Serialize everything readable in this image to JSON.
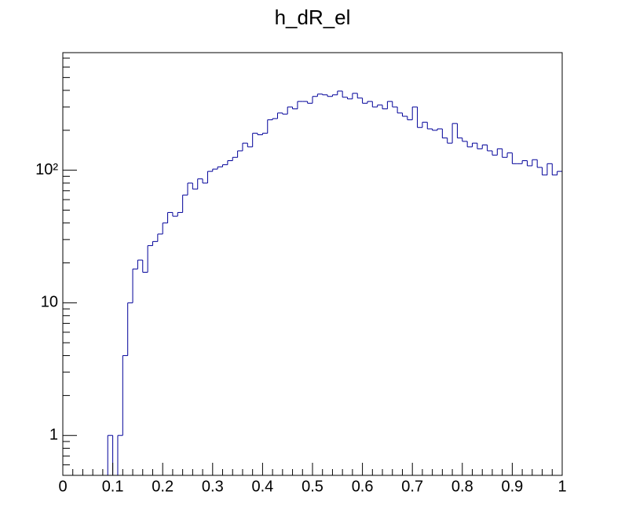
{
  "chart_data": {
    "type": "histogram",
    "title": "h_dR_el",
    "color": "#000099",
    "log_y": true,
    "bins": [
      0,
      0.01,
      0.02,
      0.03,
      0.04,
      0.05,
      0.06,
      0.07,
      0.08,
      0.09,
      0.1,
      0.11,
      0.12,
      0.13,
      0.14,
      0.15,
      0.16,
      0.17,
      0.18,
      0.19,
      0.2,
      0.21,
      0.22,
      0.23,
      0.24,
      0.25,
      0.26,
      0.27,
      0.28,
      0.29,
      0.3,
      0.31,
      0.32,
      0.33,
      0.34,
      0.35,
      0.36,
      0.37,
      0.38,
      0.39,
      0.4,
      0.41,
      0.42,
      0.43,
      0.44,
      0.45,
      0.46,
      0.47,
      0.48,
      0.49,
      0.5,
      0.51,
      0.52,
      0.53,
      0.54,
      0.55,
      0.56,
      0.57,
      0.58,
      0.59,
      0.6,
      0.61,
      0.62,
      0.63,
      0.64,
      0.65,
      0.66,
      0.67,
      0.68,
      0.69,
      0.7,
      0.71,
      0.72,
      0.73,
      0.74,
      0.75,
      0.76,
      0.77,
      0.78,
      0.79,
      0.8,
      0.81,
      0.82,
      0.83,
      0.84,
      0.85,
      0.86,
      0.87,
      0.88,
      0.89,
      0.9,
      0.91,
      0.92,
      0.93,
      0.94,
      0.95,
      0.96,
      0.97,
      0.98,
      0.99,
      1
    ],
    "values": [
      0,
      0,
      0,
      0,
      0,
      0,
      0,
      0,
      0,
      1,
      0,
      1,
      4,
      10,
      18,
      21,
      17,
      27,
      29,
      33,
      40,
      48,
      45,
      48,
      65,
      80,
      72,
      86,
      80,
      98,
      102,
      106,
      110,
      118,
      125,
      140,
      160,
      150,
      190,
      185,
      190,
      240,
      245,
      270,
      265,
      300,
      290,
      330,
      330,
      320,
      360,
      375,
      370,
      360,
      370,
      395,
      355,
      345,
      380,
      350,
      320,
      330,
      300,
      310,
      290,
      330,
      300,
      270,
      255,
      240,
      300,
      210,
      230,
      205,
      200,
      205,
      175,
      160,
      225,
      175,
      165,
      150,
      160,
      145,
      155,
      140,
      130,
      145,
      125,
      135,
      112,
      112,
      118,
      108,
      120,
      105,
      92,
      112,
      92,
      98
    ],
    "xlim": [
      0,
      1
    ],
    "xticks": [
      0,
      0.1,
      0.2,
      0.3,
      0.4,
      0.5,
      0.6,
      0.7,
      0.8,
      0.9,
      1
    ],
    "ylim": [
      0.5,
      770
    ],
    "yticks": [
      1,
      10,
      {
        "value": 100,
        "label": "10²"
      }
    ]
  }
}
